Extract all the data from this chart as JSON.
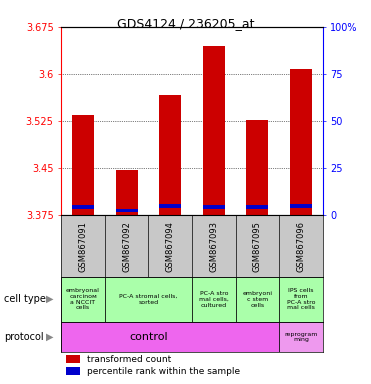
{
  "title": "GDS4124 / 236205_at",
  "samples": [
    "GSM867091",
    "GSM867092",
    "GSM867094",
    "GSM867093",
    "GSM867095",
    "GSM867096"
  ],
  "red_values": [
    3.535,
    3.447,
    3.567,
    3.645,
    3.527,
    3.608
  ],
  "blue_values": [
    3.388,
    3.383,
    3.39,
    3.388,
    3.388,
    3.39
  ],
  "y_min": 3.375,
  "y_max": 3.675,
  "y_ticks": [
    3.375,
    3.45,
    3.525,
    3.6,
    3.675
  ],
  "y2_ticks": [
    0,
    25,
    50,
    75,
    100
  ],
  "bar_color": "#cc0000",
  "blue_color": "#0000cc",
  "sample_label_bg": "#c8c8c8",
  "cell_type_color": "#aaffaa",
  "protocol_control_color": "#ee66ee",
  "protocol_reprog_color": "#ee99ee",
  "red_label": "transformed count",
  "blue_label": "percentile rank within the sample",
  "cell_type_groups": [
    {
      "start": 0,
      "end": 1,
      "label": "embryonal\ncarcinoм\na NCCIT\ncells"
    },
    {
      "start": 1,
      "end": 3,
      "label": "PC-A stromal cells,\nsorted"
    },
    {
      "start": 3,
      "end": 4,
      "label": "PC-A stro\nmal cells,\ncultured"
    },
    {
      "start": 4,
      "end": 5,
      "label": "embryoni\nc stem\ncells"
    },
    {
      "start": 5,
      "end": 6,
      "label": "IPS cells\nfrom\nPC-A stro\nmal cells"
    }
  ]
}
